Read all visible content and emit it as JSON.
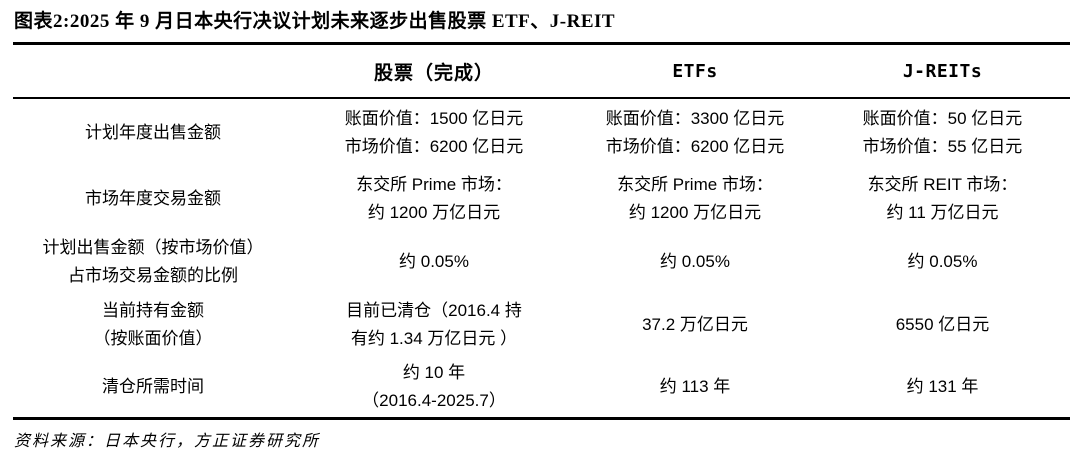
{
  "figure": {
    "title": "图表2:2025 年 9 月日本央行决议计划未来逐步出售股票 ETF、J-REIT",
    "source": "资料来源：日本央行，方正证券研究所"
  },
  "colors": {
    "text": "#000000",
    "rule": "#000000",
    "background": "#ffffff"
  },
  "chart_data": {
    "type": "table",
    "title": "2025 年 9 月日本央行决议计划未来逐步出售股票 ETF、J-REIT",
    "columns": [
      "",
      "股票（完成）",
      "ETFs",
      "J-REITs"
    ],
    "row_labels": [
      "计划年度出售金额",
      "市场年度交易金额",
      "计划出售金额（按市场价值）占市场交易金额的比例",
      "当前持有金额（按账面价值）",
      "清仓所需时间"
    ],
    "rows": [
      {
        "cells": [
          [
            "计划年度出售金额"
          ],
          [
            "账面价值：1500 亿日元",
            "市场价值：6200 亿日元"
          ],
          [
            "账面价值：3300 亿日元",
            "市场价值：6200 亿日元"
          ],
          [
            "账面价值：50 亿日元",
            "市场价值：55 亿日元"
          ]
        ]
      },
      {
        "cells": [
          [
            "市场年度交易金额"
          ],
          [
            "东交所 Prime 市场：",
            "约 1200 万亿日元"
          ],
          [
            "东交所 Prime 市场：",
            "约 1200 万亿日元"
          ],
          [
            "东交所 REIT 市场：",
            "约 11 万亿日元"
          ]
        ]
      },
      {
        "cells": [
          [
            "计划出售金额（按市场价值）",
            "占市场交易金额的比例"
          ],
          [
            "约 0.05%"
          ],
          [
            "约 0.05%"
          ],
          [
            "约 0.05%"
          ]
        ]
      },
      {
        "cells": [
          [
            "当前持有金额",
            "（按账面价值）"
          ],
          [
            "目前已清仓（2016.4 持",
            "有约 1.34 万亿日元 ）"
          ],
          [
            "37.2 万亿日元"
          ],
          [
            "6550 亿日元"
          ]
        ]
      },
      {
        "cells": [
          [
            "清仓所需时间"
          ],
          [
            "约 10 年",
            "（2016.4-2025.7）"
          ],
          [
            "约 113 年"
          ],
          [
            "约 131 年"
          ]
        ]
      }
    ],
    "source": "资料来源：日本央行，方正证券研究所"
  }
}
